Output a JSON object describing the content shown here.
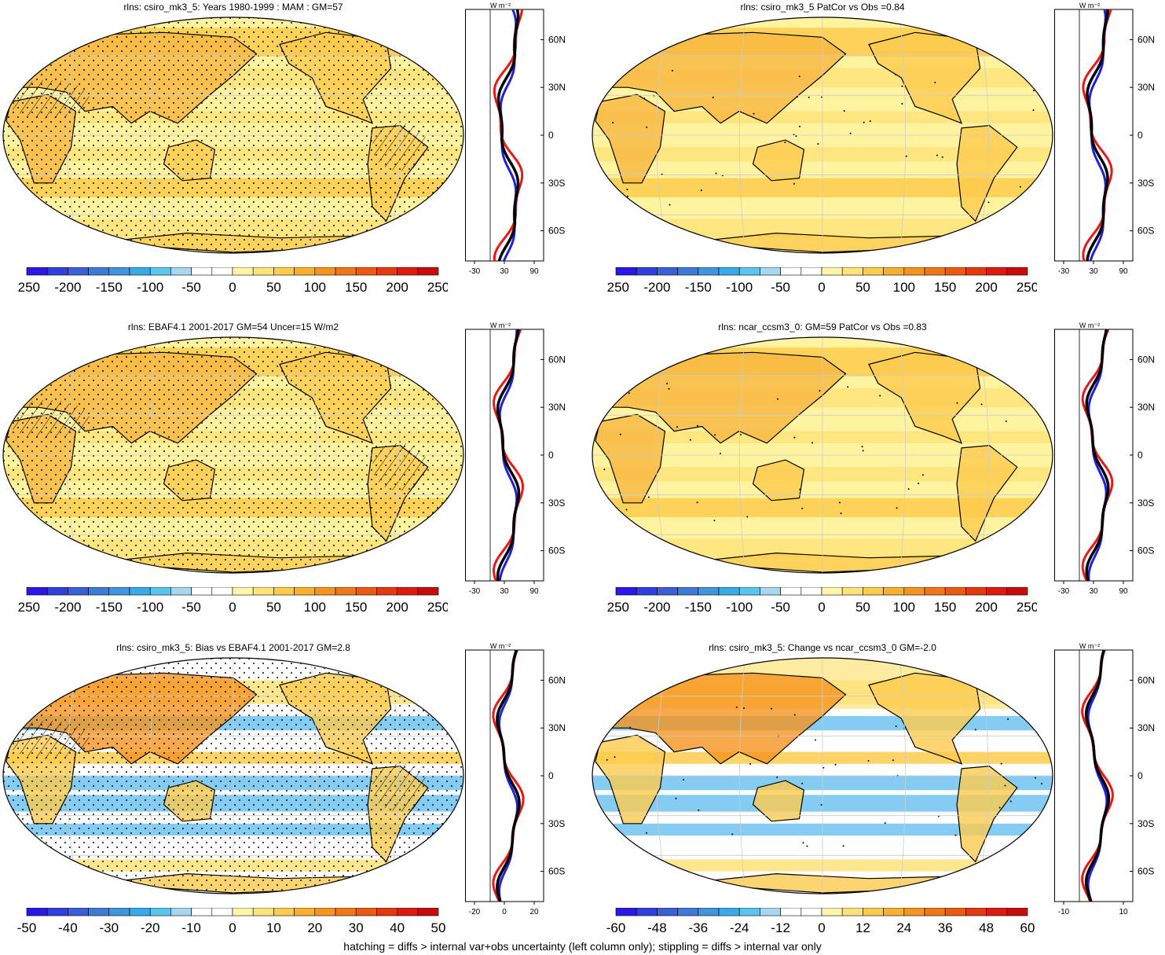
{
  "footer": "hatching = diffs > internal var+obs uncertainty (left column only); stippling = diffs > internal var only",
  "zonal_unit": "W m⁻²",
  "lat_ticks": [
    "60N",
    "30N",
    "0",
    "30S",
    "60S"
  ],
  "palette": {
    "bipolar": [
      "#2b17e6",
      "#2f3fe0",
      "#3a5fd9",
      "#3d7ad8",
      "#3f95e0",
      "#36abe8",
      "#5bc4ef",
      "#a7d7ee",
      "#ffffff",
      "#ffffff",
      "#fff5a8",
      "#fde37a",
      "#fccb4c",
      "#f9b02e",
      "#f5941f",
      "#f07619",
      "#ec5a12",
      "#e6380e",
      "#dd1b0c",
      "#c90b0b"
    ],
    "zonal_blue": "#1f1fe0",
    "zonal_red": "#f01515",
    "zonal_black": "#000000",
    "ocean": "#fff3a0",
    "land_warm": "#f7b640",
    "neg_light": "#6ec3ee"
  },
  "panels": [
    {
      "title": "rlns: csiro_mk3_5: Years 1980-1999 : MAM : GM=57",
      "colorbar_labels": [
        "-250",
        "-200",
        "-150",
        "-100",
        "-50",
        "0",
        "50",
        "100",
        "150",
        "200",
        "250"
      ],
      "zonal_ticks": [
        "-30",
        "30",
        "90"
      ],
      "chart_data": {
        "type": "heatmap",
        "kind": "model-climatology",
        "global_mean": 57,
        "units": "W m-2",
        "levels": [
          -250,
          250
        ]
      }
    },
    {
      "title": "rlns: csiro_mk3_5 PatCor vs Obs =0.84",
      "colorbar_labels": [
        "-250",
        "-200",
        "-150",
        "-100",
        "-50",
        "0",
        "50",
        "100",
        "150",
        "200",
        "250"
      ],
      "zonal_ticks": [
        "-30",
        "30",
        "90"
      ],
      "chart_data": {
        "type": "heatmap",
        "kind": "model-climatology",
        "pattern_correlation": 0.84,
        "units": "W m-2",
        "levels": [
          -250,
          250
        ]
      }
    },
    {
      "title": "rlns: EBAF4.1 2001-2017 GM=54 Uncer=15 W/m2",
      "colorbar_labels": [
        "-250",
        "-200",
        "-150",
        "-100",
        "-50",
        "0",
        "50",
        "100",
        "150",
        "200",
        "250"
      ],
      "zonal_ticks": [
        "-30",
        "30",
        "90"
      ],
      "chart_data": {
        "type": "heatmap",
        "kind": "observations",
        "global_mean": 54,
        "uncertainty": 15,
        "units": "W m-2",
        "levels": [
          -250,
          250
        ]
      }
    },
    {
      "title": "rlns: ncar_ccsm3_0: GM=59 PatCor vs Obs =0.83",
      "colorbar_labels": [
        "-250",
        "-200",
        "-150",
        "-100",
        "-50",
        "0",
        "50",
        "100",
        "150",
        "200",
        "250"
      ],
      "zonal_ticks": [
        "-30",
        "30",
        "90"
      ],
      "chart_data": {
        "type": "heatmap",
        "kind": "model-climatology",
        "global_mean": 59,
        "pattern_correlation": 0.83,
        "units": "W m-2",
        "levels": [
          -250,
          250
        ]
      }
    },
    {
      "title": "rlns: csiro_mk3_5: Bias vs EBAF4.1 2001-2017 GM=2.8",
      "colorbar_labels": [
        "-50",
        "-40",
        "-30",
        "-20",
        "-10",
        "0",
        "10",
        "20",
        "30",
        "40",
        "50"
      ],
      "zonal_ticks": [
        "-20",
        "0",
        "20"
      ],
      "chart_data": {
        "type": "heatmap",
        "kind": "bias",
        "global_mean": 2.8,
        "units": "W m-2",
        "levels": [
          -50,
          50
        ]
      }
    },
    {
      "title": "rlns: csiro_mk3_5: Change vs ncar_ccsm3_0 GM=-2.0",
      "colorbar_labels": [
        "-60",
        "-48",
        "-36",
        "-24",
        "-12",
        "0",
        "12",
        "24",
        "36",
        "48",
        "60"
      ],
      "zonal_ticks": [
        "-10",
        "10"
      ],
      "chart_data": {
        "type": "heatmap",
        "kind": "change",
        "global_mean": -2.0,
        "units": "W m-2",
        "levels": [
          -60,
          60
        ]
      }
    }
  ]
}
